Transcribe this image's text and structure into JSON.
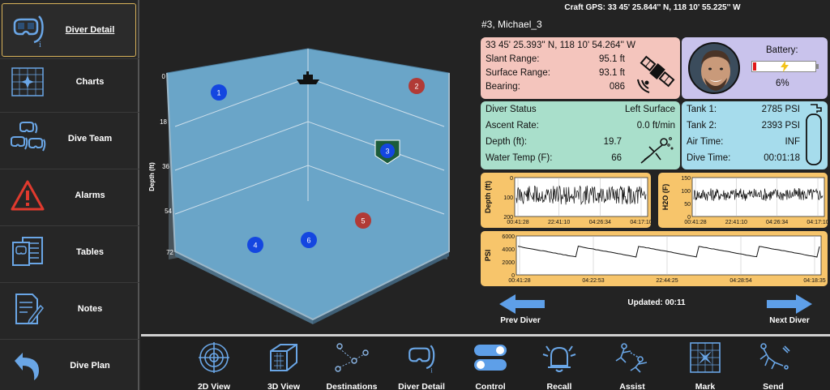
{
  "sidebar": {
    "items": [
      {
        "label": "Diver Detail",
        "icon": "diver-mask-icon",
        "active": true
      },
      {
        "label": "Charts",
        "icon": "chart-grid-icon"
      },
      {
        "label": "Dive Team",
        "icon": "dive-team-icon"
      },
      {
        "label": "Alarms",
        "icon": "alarm-triangle-icon"
      },
      {
        "label": "Tables",
        "icon": "tables-icon"
      },
      {
        "label": "Notes",
        "icon": "notes-icon"
      },
      {
        "label": "Dive Plan",
        "icon": "return-arrow-icon"
      }
    ]
  },
  "header": {
    "craft_gps": "Craft GPS: 33 45' 25.844'' N, 118 10' 55.225'' W"
  },
  "view3d": {
    "depth_axis_label": "Depth (ft)",
    "depth_ticks": [
      "0",
      "18",
      "36",
      "54",
      "72"
    ],
    "divers": [
      {
        "id": "1",
        "color": "#1446e0"
      },
      {
        "id": "2",
        "color": "#b13a36"
      },
      {
        "id": "3",
        "color": "#1446e0",
        "selected": true
      },
      {
        "id": "4",
        "color": "#1446e0"
      },
      {
        "id": "5",
        "color": "#b13a36"
      },
      {
        "id": "6",
        "color": "#1446e0"
      }
    ],
    "craft_icon": "boat-icon",
    "colors": {
      "water": "#6aa5c8",
      "walls": "#8fb0c4"
    }
  },
  "diver": {
    "name": "#3, Michael_3",
    "gps": {
      "position": "33 45' 25.393'' N, 118 10' 54.264'' W",
      "slant_range_label": "Slant Range:",
      "slant_range": "95.1 ft",
      "surface_range_label": "Surface Range:",
      "surface_range": "93.1 ft",
      "bearing_label": "Bearing:",
      "bearing": "086",
      "icon": "satellite-icon"
    },
    "battery": {
      "label": "Battery:",
      "value": "6%",
      "level": 0.06,
      "icon": "lightning-icon",
      "photo_icon": "diver-avatar"
    },
    "status": {
      "status_label": "Diver Status",
      "status": "Left Surface",
      "ascent_label": "Ascent Rate:",
      "ascent": "0.0 ft/min",
      "depth_label": "Depth (ft):",
      "depth": "19.7",
      "temp_label": "Water Temp (F):",
      "temp": "66",
      "icon": "swimming-diver-icon"
    },
    "tank": {
      "tank1_label": "Tank 1:",
      "tank1": "2785 PSI",
      "tank2_label": "Tank 2:",
      "tank2": "2393 PSI",
      "air_label": "Air Time:",
      "air": "INF",
      "dive_label": "Dive Time:",
      "dive": "00:01:18",
      "icon": "tank-icon"
    }
  },
  "chart_data": [
    {
      "type": "line",
      "ylabel": "Depth (ft)",
      "yticks": [
        "0",
        "100",
        "200"
      ],
      "ylim": [
        200,
        0
      ],
      "xticks": [
        "00:41:28",
        "22:41:10",
        "04:26:34",
        "04:17:10"
      ],
      "pattern": "noisy band between 40 and 140"
    },
    {
      "type": "line",
      "ylabel": "H2O (F)",
      "yticks": [
        "150",
        "100",
        "50",
        "0"
      ],
      "ylim": [
        0,
        150
      ],
      "xticks": [
        "00:41:28",
        "22:41:10",
        "04:26:34",
        "04:17:10"
      ],
      "pattern": "noisy band between 60 and 110"
    },
    {
      "type": "line",
      "ylabel": "PSI",
      "yticks": [
        "6000",
        "4000",
        "2000",
        "0"
      ],
      "ylim": [
        0,
        6000
      ],
      "xticks": [
        "00:41:28",
        "04:22:53",
        "22:44:25",
        "04:28:54",
        "04:18:35"
      ],
      "pattern": "sawtooth between ~4400 and ~2700"
    }
  ],
  "footer": {
    "updated": "Updated: 00:11",
    "prev": "Prev Diver",
    "next": "Next Diver"
  },
  "toolbar": {
    "items": [
      {
        "label": "2D View",
        "icon": "target-2d-icon"
      },
      {
        "label": "3D View",
        "icon": "cube-3d-icon"
      },
      {
        "label": "Destinations",
        "icon": "destinations-icon"
      },
      {
        "label": "Diver Detail",
        "icon": "diver-mask-icon"
      },
      {
        "label": "Control",
        "icon": "toggle-control-icon"
      },
      {
        "label": "Recall",
        "icon": "recall-bell-icon"
      },
      {
        "label": "Assist",
        "icon": "assist-divers-icon"
      },
      {
        "label": "Mark",
        "icon": "mark-icon"
      },
      {
        "label": "Send",
        "icon": "send-diver-icon"
      }
    ]
  }
}
